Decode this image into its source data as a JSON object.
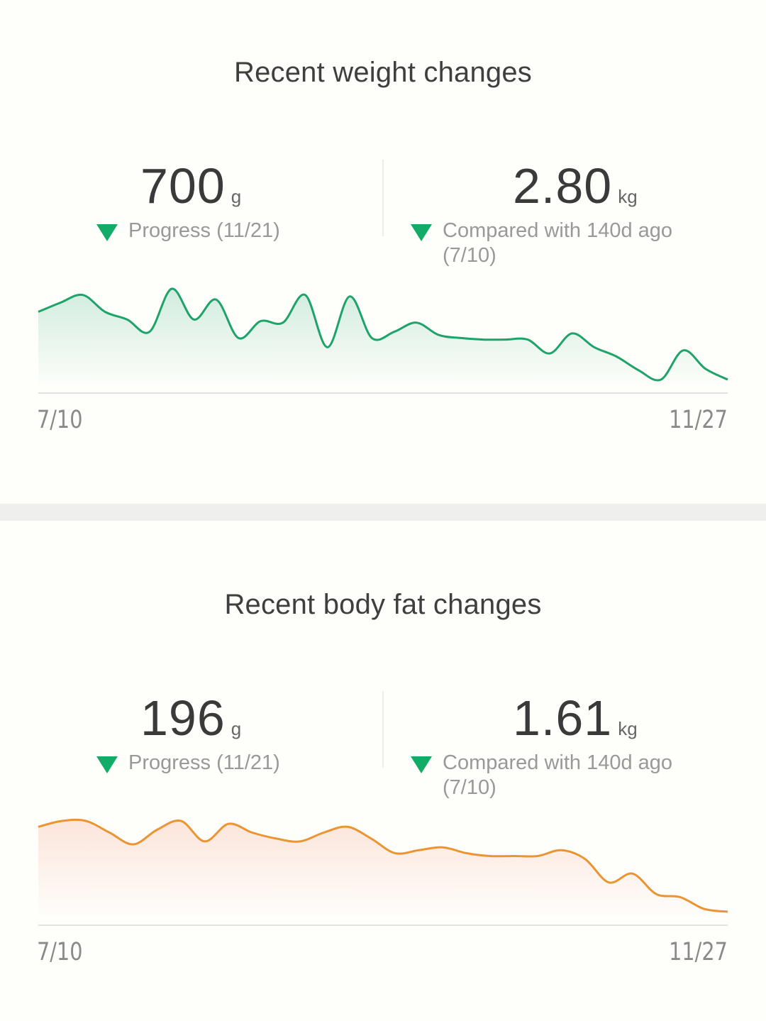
{
  "colors": {
    "weight_line": "#1ea36a",
    "fat_line": "#eb9432",
    "down_triangle": "#12ab67"
  },
  "weight": {
    "title": "Recent weight changes",
    "progress_value": "700",
    "progress_unit": "g",
    "progress_caption": "Progress (11/21)",
    "compare_value": "2.80",
    "compare_unit": "kg",
    "compare_caption": "Compared with 140d ago (7/10)",
    "x_start": "7/10",
    "x_end": "11/27"
  },
  "fat": {
    "title": "Recent body fat changes",
    "progress_value": "196",
    "progress_unit": "g",
    "progress_caption": "Progress (11/21)",
    "compare_value": "1.61",
    "compare_unit": "kg",
    "compare_caption": "Compared with 140d ago (7/10)",
    "x_start": "7/10",
    "x_end": "11/27"
  },
  "chart_data": [
    {
      "type": "area",
      "title": "Recent weight changes",
      "x_range": [
        "7/10",
        "11/27"
      ],
      "y": [
        2.2,
        2.5,
        2.75,
        2.2,
        1.95,
        1.55,
        2.95,
        1.95,
        2.6,
        1.35,
        1.9,
        1.85,
        2.75,
        1.05,
        2.7,
        1.35,
        1.55,
        1.85,
        1.45,
        1.35,
        1.3,
        1.3,
        1.3,
        0.85,
        1.5,
        1.05,
        0.75,
        0.3,
        0.0,
        0.95,
        0.35,
        0.0
      ],
      "grid": false
    },
    {
      "type": "area",
      "title": "Recent body fat changes",
      "x_range": [
        "7/10",
        "11/27"
      ],
      "y": [
        1.5,
        1.6,
        1.6,
        1.4,
        1.2,
        1.45,
        1.6,
        1.25,
        1.55,
        1.4,
        1.3,
        1.25,
        1.4,
        1.5,
        1.3,
        1.05,
        1.1,
        1.15,
        1.05,
        1.0,
        1.0,
        1.0,
        1.1,
        0.95,
        0.55,
        0.7,
        0.35,
        0.3,
        0.1,
        0.05
      ],
      "grid": false
    }
  ]
}
